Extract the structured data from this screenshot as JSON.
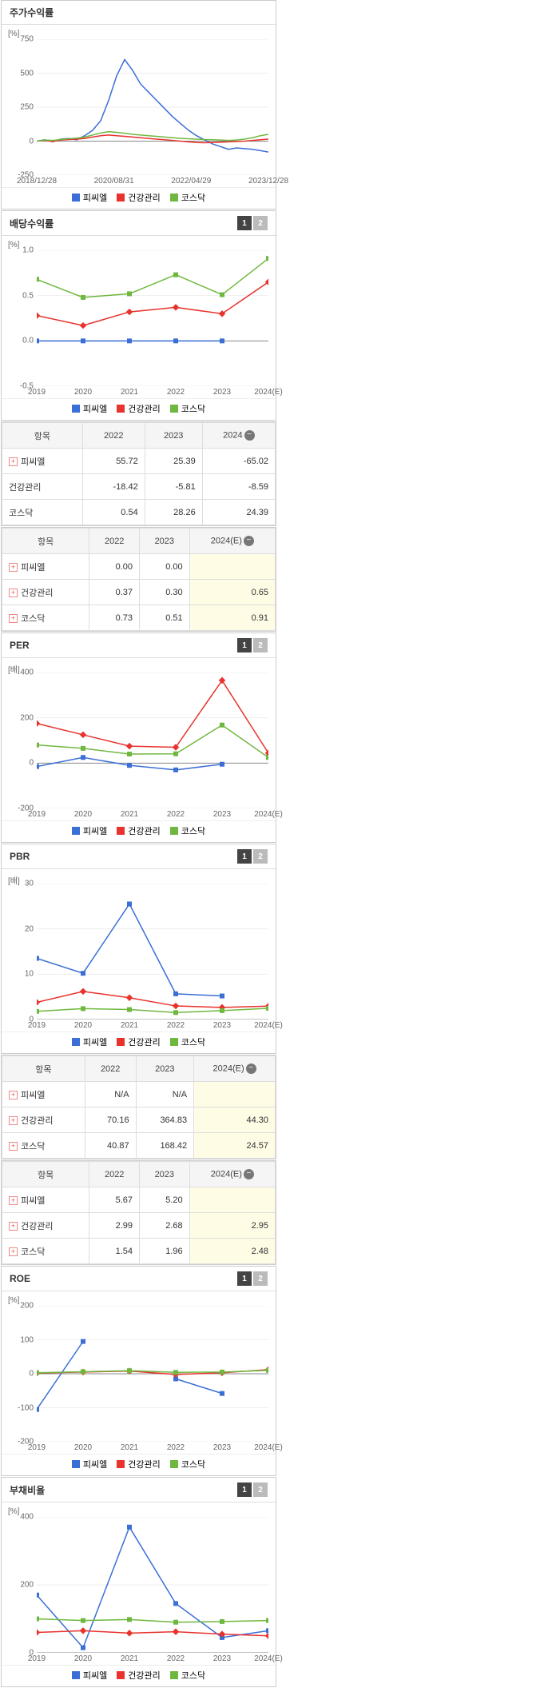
{
  "colors": {
    "s1": "#3b6fd6",
    "s2": "#e8322d",
    "s3": "#6fb83f",
    "grid": "#eeeeee",
    "axis": "#888888"
  },
  "legend_labels": [
    "피씨엘",
    "건강관리",
    "코스닥"
  ],
  "unit_pct": "[%]",
  "unit_x": "[배]",
  "panels": [
    {
      "id": "p1",
      "title": "주가수익률",
      "btns": null,
      "ylabel": "[%]",
      "ymin": -250,
      "ymax": 750,
      "ystep": 250,
      "xcats": [
        "2018/12/28",
        "2020/08/31",
        "2022/04/29",
        "2023/12/28"
      ],
      "dense": true,
      "series": [
        {
          "c": "s1",
          "dense": [
            0,
            10,
            -5,
            15,
            20,
            10,
            40,
            80,
            150,
            300,
            480,
            600,
            520,
            420,
            360,
            300,
            240,
            180,
            130,
            80,
            40,
            10,
            -20,
            -40,
            -60,
            -50,
            -55,
            -60,
            -70,
            -80
          ]
        },
        {
          "c": "s2",
          "dense": [
            0,
            5,
            -3,
            8,
            12,
            15,
            20,
            30,
            40,
            45,
            40,
            35,
            30,
            25,
            20,
            15,
            10,
            5,
            0,
            -5,
            -10,
            -12,
            -10,
            -8,
            -5,
            -2,
            0,
            5,
            10,
            15
          ]
        },
        {
          "c": "s3",
          "dense": [
            0,
            8,
            5,
            12,
            18,
            22,
            30,
            45,
            60,
            70,
            65,
            58,
            50,
            45,
            40,
            35,
            30,
            25,
            20,
            18,
            15,
            12,
            10,
            8,
            5,
            8,
            15,
            25,
            40,
            50
          ]
        }
      ]
    },
    {
      "id": "p2",
      "title": "배당수익률",
      "btns": [
        1,
        2
      ],
      "ylabel": "[%]",
      "ymin": -0.5,
      "ymax": 1.0,
      "ystep": 0.5,
      "xcats": [
        "2019",
        "2020",
        "2021",
        "2022",
        "2023",
        "2024(E)"
      ],
      "series": [
        {
          "c": "s1",
          "y": [
            0.0,
            0.0,
            0.0,
            0.0,
            0.0,
            null
          ]
        },
        {
          "c": "s2",
          "y": [
            0.28,
            0.17,
            0.32,
            0.37,
            0.3,
            0.65
          ]
        },
        {
          "c": "s3",
          "y": [
            0.68,
            0.48,
            0.52,
            0.73,
            0.51,
            0.91
          ]
        }
      ]
    },
    {
      "id": "p3",
      "title": "PER",
      "btns": [
        1,
        2
      ],
      "ylabel": "[배]",
      "ymin": -200,
      "ymax": 400,
      "ystep": 200,
      "xcats": [
        "2019",
        "2020",
        "2021",
        "2022",
        "2023",
        "2024(E)"
      ],
      "series": [
        {
          "c": "s1",
          "y": [
            -15,
            25,
            -10,
            -30,
            -5,
            null
          ]
        },
        {
          "c": "s2",
          "y": [
            175,
            125,
            75,
            70,
            365,
            44
          ]
        },
        {
          "c": "s3",
          "y": [
            80,
            65,
            40,
            41,
            168,
            25
          ]
        }
      ]
    },
    {
      "id": "p4",
      "title": "PBR",
      "btns": [
        1,
        2
      ],
      "ylabel": "[배]",
      "ymin": 0,
      "ymax": 30,
      "ystep": 10,
      "xcats": [
        "2019",
        "2020",
        "2021",
        "2022",
        "2023",
        "2024(E)"
      ],
      "series": [
        {
          "c": "s1",
          "y": [
            13.5,
            10.2,
            25.5,
            5.67,
            5.2,
            null
          ]
        },
        {
          "c": "s2",
          "y": [
            3.8,
            6.2,
            4.8,
            2.99,
            2.68,
            2.95
          ]
        },
        {
          "c": "s3",
          "y": [
            1.8,
            2.4,
            2.2,
            1.54,
            1.96,
            2.48
          ]
        }
      ]
    },
    {
      "id": "p5",
      "title": "ROE",
      "btns": [
        1,
        2
      ],
      "ylabel": "[%]",
      "ymin": -200,
      "ymax": 200,
      "ystep": 100,
      "xcats": [
        "2019",
        "2020",
        "2021",
        "2022",
        "2023",
        "2024(E)"
      ],
      "series": [
        {
          "c": "s1",
          "y": [
            -105,
            95,
            null,
            -15,
            -58,
            null
          ]
        },
        {
          "c": "s2",
          "y": [
            2,
            5,
            8,
            -2,
            3,
            12
          ]
        },
        {
          "c": "s3",
          "y": [
            3,
            6,
            9,
            4,
            5,
            10
          ]
        }
      ]
    },
    {
      "id": "p6",
      "title": "부채비율",
      "btns": [
        1,
        2
      ],
      "ylabel": "[%]",
      "ymin": 0,
      "ymax": 400,
      "ystep": 200,
      "xcats": [
        "2019",
        "2020",
        "2021",
        "2022",
        "2023",
        "2024(E)"
      ],
      "series": [
        {
          "c": "s1",
          "y": [
            170,
            15,
            370,
            145,
            45,
            65
          ]
        },
        {
          "c": "s2",
          "y": [
            60,
            65,
            58,
            62,
            55,
            50
          ]
        },
        {
          "c": "s3",
          "y": [
            100,
            95,
            98,
            90,
            92,
            95
          ]
        }
      ]
    }
  ],
  "tables": [
    {
      "id": "t1",
      "cols": [
        "항목",
        "2022",
        "2023",
        "2024"
      ],
      "last_hl": false,
      "minus": true,
      "rows": [
        {
          "plus": true,
          "label": "피씨엘",
          "v": [
            "55.72",
            "25.39",
            "-65.02"
          ]
        },
        {
          "plus": false,
          "label": "건강관리",
          "v": [
            "-18.42",
            "-5.81",
            "-8.59"
          ]
        },
        {
          "plus": false,
          "label": "코스닥",
          "v": [
            "0.54",
            "28.26",
            "24.39"
          ]
        }
      ]
    },
    {
      "id": "t2",
      "cols": [
        "항목",
        "2022",
        "2023",
        "2024(E)"
      ],
      "last_hl": true,
      "minus": true,
      "rows": [
        {
          "plus": true,
          "label": "피씨엘",
          "v": [
            "0.00",
            "0.00",
            ""
          ]
        },
        {
          "plus": true,
          "label": "건강관리",
          "v": [
            "0.37",
            "0.30",
            "0.65"
          ]
        },
        {
          "plus": true,
          "label": "코스닥",
          "v": [
            "0.73",
            "0.51",
            "0.91"
          ]
        }
      ]
    },
    {
      "id": "t3",
      "cols": [
        "항목",
        "2022",
        "2023",
        "2024(E)"
      ],
      "last_hl": true,
      "minus": true,
      "rows": [
        {
          "plus": true,
          "label": "피씨엘",
          "v": [
            "N/A",
            "N/A",
            ""
          ]
        },
        {
          "plus": true,
          "label": "건강관리",
          "v": [
            "70.16",
            "364.83",
            "44.30"
          ]
        },
        {
          "plus": true,
          "label": "코스닥",
          "v": [
            "40.87",
            "168.42",
            "24.57"
          ]
        }
      ]
    },
    {
      "id": "t4",
      "cols": [
        "항목",
        "2022",
        "2023",
        "2024(E)"
      ],
      "last_hl": true,
      "minus": true,
      "rows": [
        {
          "plus": true,
          "label": "피씨엘",
          "v": [
            "5.67",
            "5.20",
            ""
          ]
        },
        {
          "plus": true,
          "label": "건강관리",
          "v": [
            "2.99",
            "2.68",
            "2.95"
          ]
        },
        {
          "plus": true,
          "label": "코스닥",
          "v": [
            "1.54",
            "1.96",
            "2.48"
          ]
        }
      ]
    }
  ],
  "layout": [
    "p1",
    "p2",
    "t1",
    "t2",
    "p3",
    "p4",
    "t3",
    "t4",
    "p5",
    "p6"
  ]
}
